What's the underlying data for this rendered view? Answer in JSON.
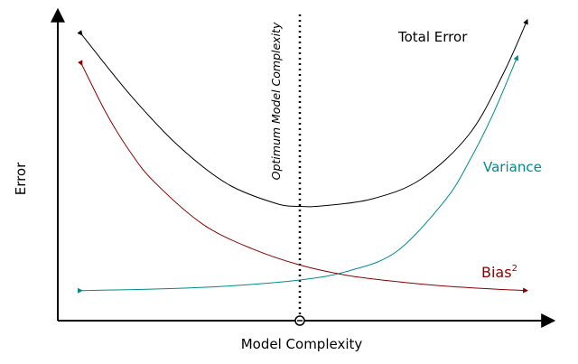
{
  "chart_data": {
    "type": "line",
    "title": "",
    "xlabel": "Model Complexity",
    "ylabel": "Error",
    "x_ticks": [],
    "y_ticks": [],
    "grid": false,
    "legend": "none",
    "xlim": [
      0,
      10
    ],
    "ylim": [
      0,
      10
    ],
    "optimum": {
      "label": "Optimum Model Complexity",
      "x": 5
    },
    "series": [
      {
        "name": "Total Error",
        "color": "#000000",
        "x": [
          0.5,
          1.5,
          2.5,
          3.5,
          4.5,
          5.0,
          5.5,
          6.5,
          7.5,
          8.5,
          9.2,
          9.7
        ],
        "y": [
          9.5,
          7.5,
          5.8,
          4.55,
          3.9,
          3.8,
          3.82,
          4.05,
          4.7,
          6.2,
          8.2,
          10.0
        ]
      },
      {
        "name": "Variance",
        "color": "#008B8B",
        "x": [
          0.5,
          2.0,
          3.5,
          5.0,
          6.0,
          7.0,
          8.0,
          8.5,
          9.0,
          9.5
        ],
        "y": [
          1.0,
          1.05,
          1.15,
          1.35,
          1.65,
          2.3,
          4.0,
          5.3,
          6.9,
          8.8
        ]
      },
      {
        "name": "Bias²",
        "color": "#8B0000",
        "x": [
          0.5,
          1.0,
          1.5,
          2.0,
          3.0,
          4.0,
          5.0,
          6.0,
          7.0,
          8.0,
          9.0,
          9.7
        ],
        "y": [
          8.5,
          6.9,
          5.6,
          4.6,
          3.2,
          2.4,
          1.85,
          1.5,
          1.3,
          1.15,
          1.05,
          1.0
        ]
      }
    ],
    "series_labels": {
      "total": "Total Error",
      "variance": "Variance",
      "bias_base": "Bias",
      "bias_sup": "2"
    }
  }
}
